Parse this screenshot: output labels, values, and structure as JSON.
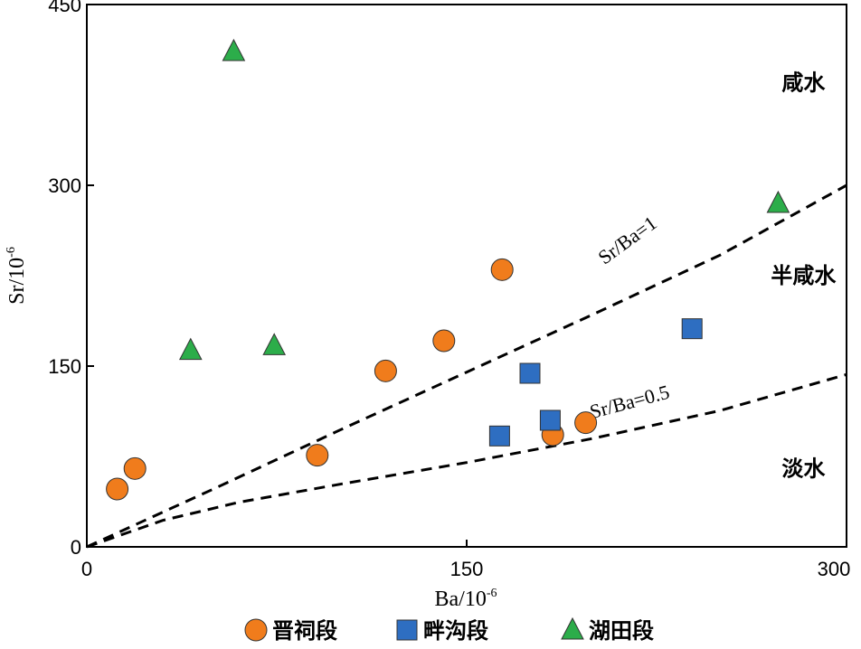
{
  "chart_data": {
    "type": "scatter",
    "title": "",
    "xlabel": "Ba/10",
    "xlabel_sup": "-6",
    "ylabel": "Sr/10",
    "ylabel_sup": "-6",
    "xlim": [
      0,
      300
    ],
    "ylim": [
      0,
      450
    ],
    "xticks": [
      0,
      150,
      300
    ],
    "yticks": [
      0,
      150,
      300,
      450
    ],
    "grid": false,
    "legend_position": "bottom",
    "zones": [
      {
        "label": "咸水",
        "x": 283,
        "y": 385
      },
      {
        "label": "半咸水",
        "x": 283,
        "y": 225
      },
      {
        "label": "淡水",
        "x": 283,
        "y": 65
      }
    ],
    "reference_lines": [
      {
        "label": "Sr/Ba=1",
        "points": [
          [
            0,
            0
          ],
          [
            50,
            48
          ],
          [
            100,
            97
          ],
          [
            150,
            145
          ],
          [
            200,
            193
          ],
          [
            250,
            242
          ],
          [
            300,
            300
          ]
        ],
        "label_x": 215,
        "label_y": 250,
        "label_angle": 36
      },
      {
        "label": "Sr/Ba=0.5",
        "points": [
          [
            0,
            0
          ],
          [
            30,
            22
          ],
          [
            60,
            37
          ],
          [
            100,
            52
          ],
          [
            150,
            70
          ],
          [
            200,
            90
          ],
          [
            250,
            113
          ],
          [
            300,
            143
          ]
        ],
        "label_x": 215,
        "label_y": 115,
        "label_angle": 15
      }
    ],
    "series": [
      {
        "name": "晋祠段",
        "marker": "circle",
        "color": "#f07c1c",
        "x": [
          12,
          19,
          91,
          118,
          141,
          164,
          184,
          197
        ],
        "y": [
          48,
          65,
          76,
          146,
          171,
          230,
          93,
          103
        ]
      },
      {
        "name": "畔沟段",
        "marker": "square",
        "color": "#2e6ec1",
        "x": [
          163,
          175,
          183,
          239
        ],
        "y": [
          92,
          144,
          105,
          181
        ]
      },
      {
        "name": "湖田段",
        "marker": "triangle",
        "color": "#2cad4a",
        "x": [
          41,
          58,
          74,
          273
        ],
        "y": [
          163,
          411,
          167,
          285
        ]
      }
    ]
  }
}
